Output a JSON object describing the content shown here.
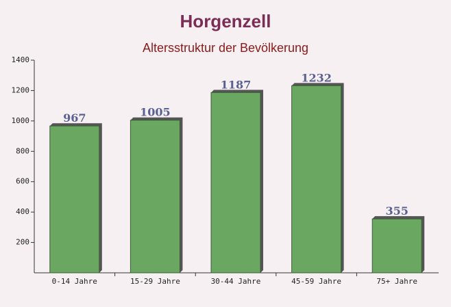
{
  "chart_data": {
    "type": "bar",
    "title": "Horgenzell",
    "subtitle": "Altersstruktur der Bevölkerung",
    "categories": [
      "0-14 Jahre",
      "15-29 Jahre",
      "30-44 Jahre",
      "45-59 Jahre",
      "75+ Jahre"
    ],
    "values": [
      967,
      1005,
      1187,
      1232,
      355
    ],
    "color": "#6aa862",
    "ylim": [
      0,
      1400
    ],
    "yticks": [
      200,
      400,
      600,
      800,
      1000,
      1200,
      1400
    ],
    "grid": false
  }
}
